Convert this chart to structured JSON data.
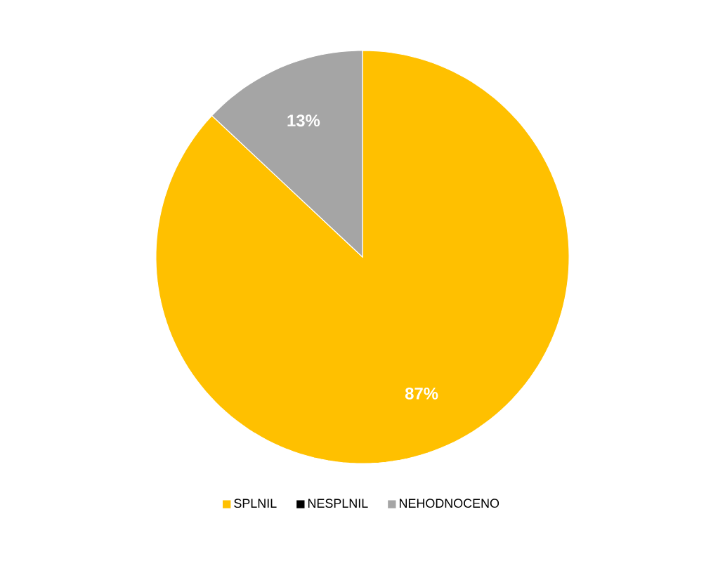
{
  "chart_data": {
    "type": "pie",
    "categories": [
      "SPLNIL",
      "NESPLNIL",
      "NEHODNOCENO"
    ],
    "values": [
      87,
      0,
      13
    ],
    "colors": [
      "#ffc000",
      "#000000",
      "#a5a5a5"
    ],
    "value_labels": [
      "87%",
      null,
      "13%"
    ],
    "legend": "bottom"
  }
}
